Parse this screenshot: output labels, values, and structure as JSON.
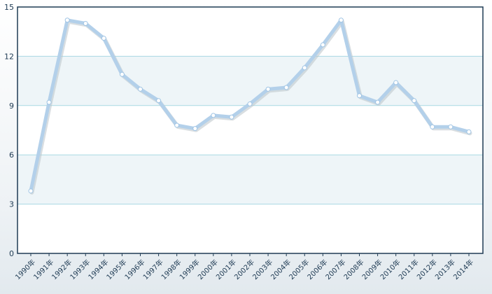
{
  "chart_data": {
    "type": "line",
    "categories": [
      "1990年",
      "1991年",
      "1992年",
      "1993年",
      "1994年",
      "1995年",
      "1996年",
      "1997年",
      "1998年",
      "1999年",
      "2000年",
      "2001年",
      "2002年",
      "2003年",
      "2004年",
      "2005年",
      "2006年",
      "2007年",
      "2008年",
      "2009年",
      "2010年",
      "2011年",
      "2012年",
      "2013年",
      "2014年"
    ],
    "series": [
      {
        "values": [
          3.8,
          9.2,
          14.2,
          14.0,
          13.1,
          10.9,
          10.0,
          9.3,
          7.8,
          7.6,
          8.4,
          8.3,
          9.1,
          10.0,
          10.1,
          11.3,
          12.7,
          14.2,
          9.6,
          9.2,
          10.4,
          9.3,
          7.7,
          7.7,
          7.4
        ]
      }
    ],
    "y_ticks": [
      0,
      3,
      6,
      9,
      12,
      15
    ],
    "ylim": [
      0,
      15
    ],
    "grid": true,
    "legend": "none",
    "colors": {
      "line": "#b3d0ea",
      "line_shadow": "#b9c2c9",
      "band": "#eef5f8",
      "grid": "#a9d9e3",
      "axis": "#1f3b54",
      "point_fill": "#ffffff"
    }
  }
}
